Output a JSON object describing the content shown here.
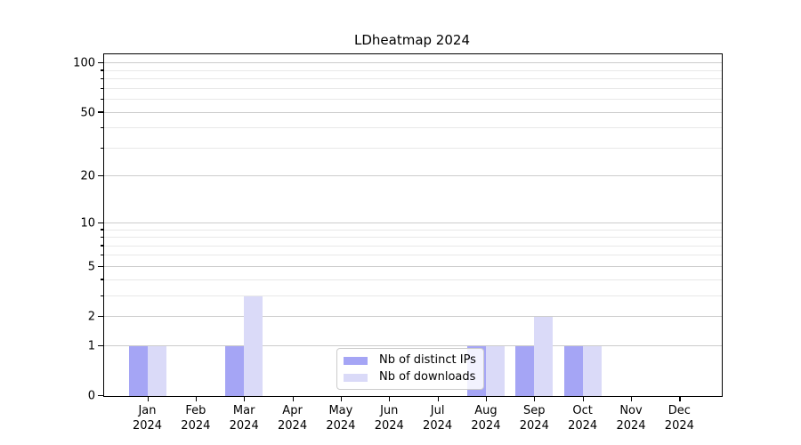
{
  "chart_data": {
    "type": "bar",
    "title": "LDheatmap 2024",
    "y_scale": "log1p",
    "categories": [
      "Jan",
      "Feb",
      "Mar",
      "Apr",
      "May",
      "Jun",
      "Jul",
      "Aug",
      "Sep",
      "Oct",
      "Nov",
      "Dec"
    ],
    "year": "2024",
    "series": [
      {
        "name": "Nb of distinct IPs",
        "color": "#a5a5f5",
        "values": [
          1,
          0,
          1,
          0,
          0,
          0,
          0,
          1,
          1,
          1,
          0,
          0
        ]
      },
      {
        "name": "Nb of downloads",
        "color": "#dadaf8",
        "values": [
          1,
          0,
          3,
          0,
          0,
          0,
          0,
          1,
          2,
          1,
          0,
          0
        ]
      }
    ],
    "y_major_ticks": [
      0,
      1,
      2,
      5,
      10,
      20,
      50,
      100
    ],
    "y_minor_ticks": [
      3,
      4,
      6,
      7,
      8,
      9,
      30,
      40,
      60,
      70,
      80,
      90
    ],
    "ylim": [
      0,
      115
    ],
    "grid": true,
    "legend_position": "lower center"
  }
}
